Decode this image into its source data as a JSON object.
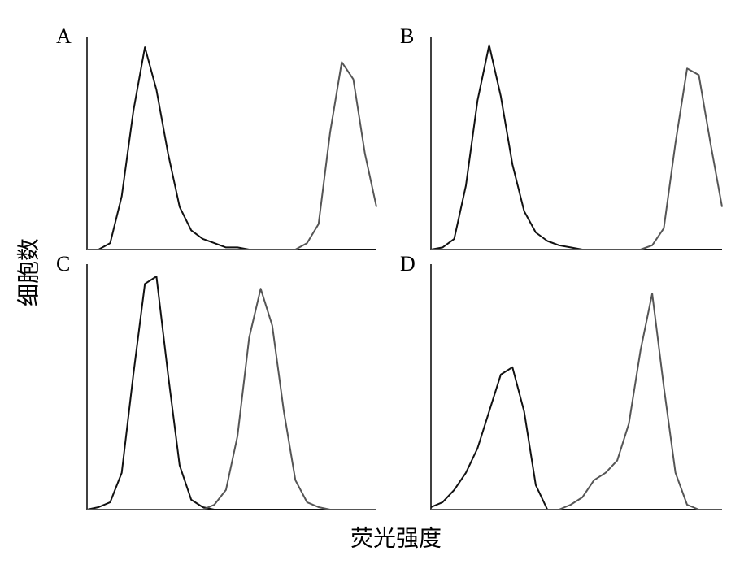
{
  "xlabel": "荧光强度",
  "ylabel": "细胞数",
  "chart_data": [
    {
      "type": "line",
      "title": "A",
      "xlim": [
        0,
        100
      ],
      "ylim": [
        0,
        100
      ],
      "x": [
        0,
        4,
        8,
        12,
        16,
        20,
        24,
        28,
        32,
        36,
        40,
        44,
        48,
        52,
        56,
        60,
        64,
        68,
        72,
        76,
        80,
        84,
        88,
        92,
        96,
        100
      ],
      "series": [
        {
          "color": "#111111",
          "values": [
            0,
            0,
            3,
            25,
            65,
            95,
            75,
            45,
            20,
            9,
            5,
            3,
            1,
            1,
            0,
            0,
            0,
            0,
            0,
            0,
            0,
            0,
            0,
            0,
            0,
            0
          ]
        },
        {
          "color": "#555555",
          "values": [
            0,
            0,
            0,
            0,
            0,
            0,
            0,
            0,
            0,
            0,
            0,
            0,
            0,
            0,
            0,
            0,
            0,
            0,
            0,
            3,
            12,
            55,
            88,
            80,
            45,
            20
          ]
        }
      ]
    },
    {
      "type": "line",
      "title": "B",
      "xlim": [
        0,
        100
      ],
      "ylim": [
        0,
        100
      ],
      "x": [
        0,
        4,
        8,
        12,
        16,
        20,
        24,
        28,
        32,
        36,
        40,
        44,
        48,
        52,
        56,
        60,
        64,
        68,
        72,
        76,
        80,
        84,
        88,
        92,
        96,
        100
      ],
      "series": [
        {
          "color": "#111111",
          "values": [
            0,
            1,
            5,
            30,
            70,
            96,
            72,
            40,
            18,
            8,
            4,
            2,
            1,
            0,
            0,
            0,
            0,
            0,
            0,
            0,
            0,
            0,
            0,
            0,
            0,
            0
          ]
        },
        {
          "color": "#555555",
          "values": [
            0,
            0,
            0,
            0,
            0,
            0,
            0,
            0,
            0,
            0,
            0,
            0,
            0,
            0,
            0,
            0,
            0,
            0,
            0,
            2,
            10,
            50,
            85,
            82,
            50,
            20
          ]
        }
      ]
    },
    {
      "type": "line",
      "title": "C",
      "xlim": [
        0,
        100
      ],
      "ylim": [
        0,
        100
      ],
      "x": [
        0,
        4,
        8,
        12,
        16,
        20,
        24,
        28,
        32,
        36,
        40,
        44,
        48,
        52,
        56,
        60,
        64,
        68,
        72,
        76,
        80,
        84,
        88,
        92,
        96,
        100
      ],
      "series": [
        {
          "color": "#111111",
          "values": [
            0,
            1,
            3,
            15,
            55,
            92,
            95,
            55,
            18,
            4,
            1,
            0,
            0,
            0,
            0,
            0,
            0,
            0,
            0,
            0,
            0,
            0,
            0,
            0,
            0,
            0
          ]
        },
        {
          "color": "#555555",
          "values": [
            0,
            0,
            0,
            0,
            0,
            0,
            0,
            0,
            0,
            0,
            0,
            2,
            8,
            30,
            70,
            90,
            75,
            40,
            12,
            3,
            1,
            0,
            0,
            0,
            0,
            0
          ]
        }
      ]
    },
    {
      "type": "line",
      "title": "D",
      "xlim": [
        0,
        100
      ],
      "ylim": [
        0,
        100
      ],
      "x": [
        0,
        4,
        8,
        12,
        16,
        20,
        24,
        28,
        32,
        36,
        40,
        44,
        48,
        52,
        56,
        60,
        64,
        68,
        72,
        76,
        80,
        84,
        88,
        92,
        96,
        100
      ],
      "series": [
        {
          "color": "#111111",
          "values": [
            1,
            3,
            8,
            15,
            25,
            40,
            55,
            58,
            40,
            10,
            0,
            0,
            0,
            0,
            0,
            0,
            0,
            0,
            0,
            0,
            0,
            0,
            0,
            0,
            0,
            0
          ]
        },
        {
          "color": "#555555",
          "values": [
            0,
            0,
            0,
            0,
            0,
            0,
            0,
            0,
            0,
            0,
            0,
            0,
            2,
            5,
            12,
            15,
            20,
            35,
            65,
            88,
            50,
            15,
            2,
            0,
            0,
            0
          ]
        }
      ]
    }
  ]
}
